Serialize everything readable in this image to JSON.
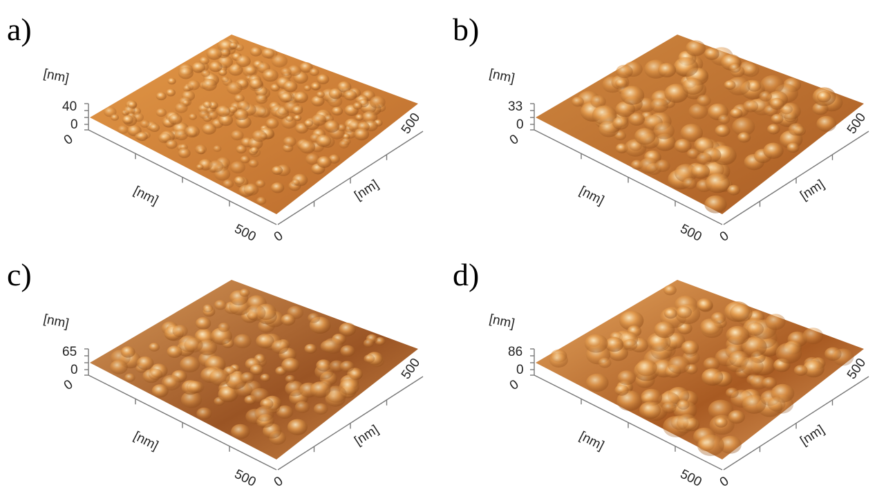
{
  "panels": [
    {
      "label": "a)",
      "z_axis": {
        "unit": "[nm]",
        "ticks": [
          "40",
          "0"
        ]
      },
      "x_axis": {
        "unit": "[nm]",
        "start": "0",
        "end": "500"
      },
      "y_axis": {
        "unit": "[nm]",
        "start": "0",
        "end": "500"
      }
    },
    {
      "label": "b)",
      "z_axis": {
        "unit": "[nm]",
        "ticks": [
          "33",
          "0"
        ]
      },
      "x_axis": {
        "unit": "[nm]",
        "start": "0",
        "end": "500"
      },
      "y_axis": {
        "unit": "[nm]",
        "start": "0",
        "end": "500"
      }
    },
    {
      "label": "c)",
      "z_axis": {
        "unit": "[nm]",
        "ticks": [
          "65",
          "0"
        ]
      },
      "x_axis": {
        "unit": "[nm]",
        "start": "0",
        "end": "500"
      },
      "y_axis": {
        "unit": "[nm]",
        "start": "0",
        "end": "500"
      }
    },
    {
      "label": "d)",
      "z_axis": {
        "unit": "[nm]",
        "ticks": [
          "86",
          "0"
        ]
      },
      "x_axis": {
        "unit": "[nm]",
        "start": "0",
        "end": "500"
      },
      "y_axis": {
        "unit": "[nm]",
        "start": "0",
        "end": "500"
      }
    }
  ]
}
